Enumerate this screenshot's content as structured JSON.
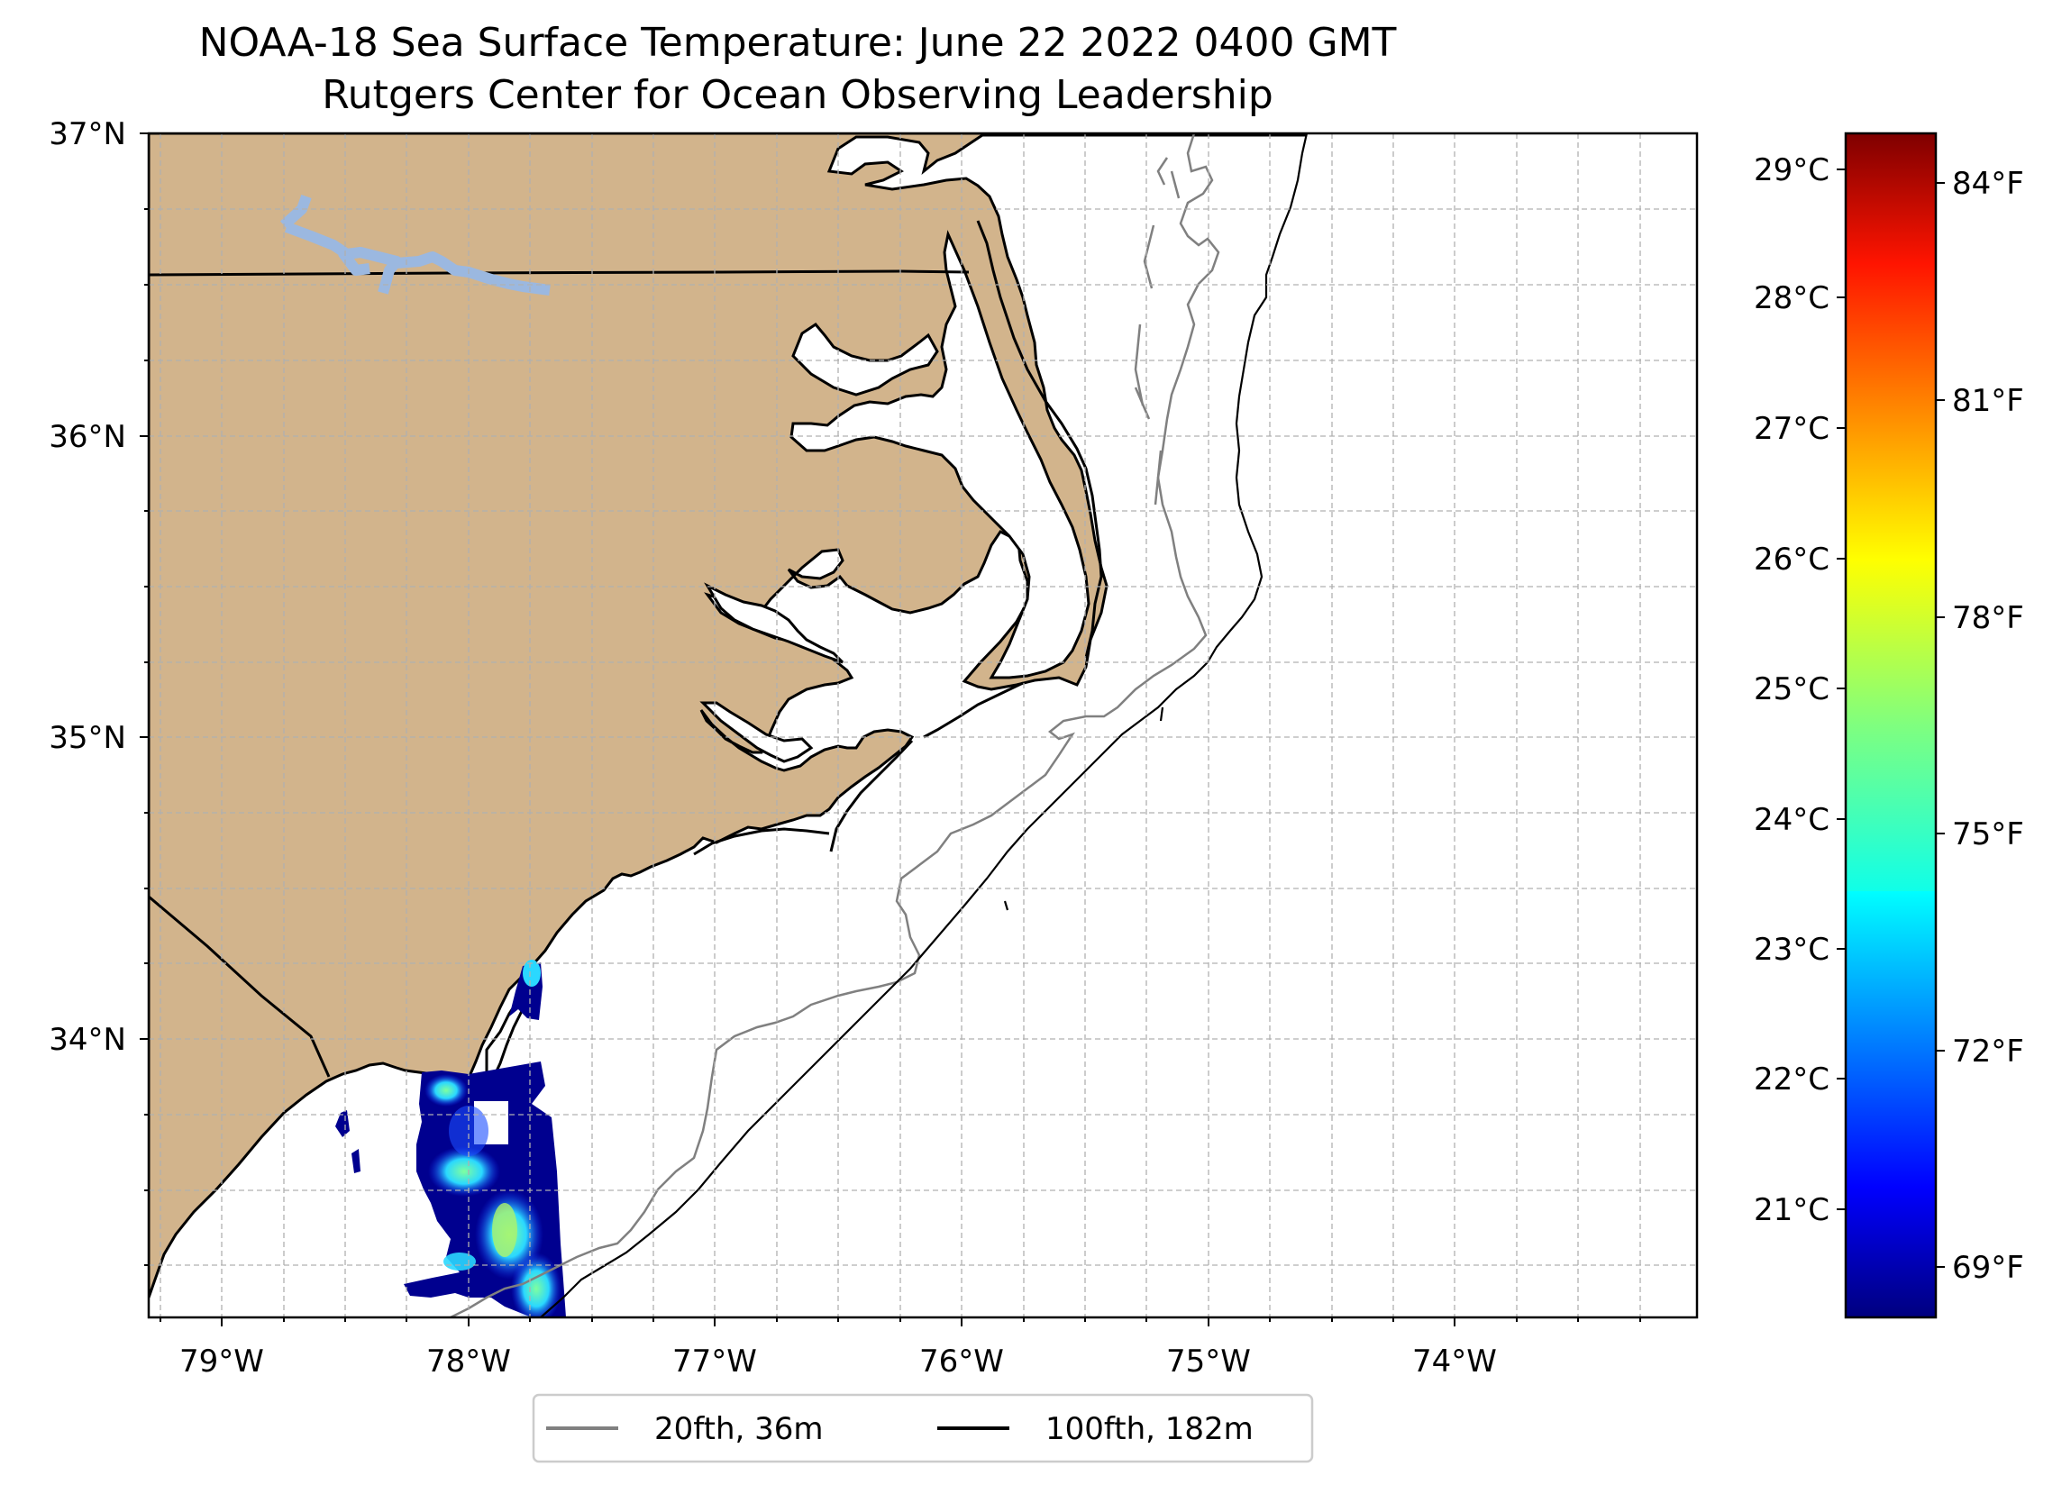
{
  "title": "NOAA-18 Sea Surface Temperature: June 22 2022 0400 GMT",
  "subtitle": "Rutgers Center for Ocean Observing Leadership",
  "map": {
    "lon_range": [
      -79.3,
      -73.03
    ],
    "lat_range": [
      33.1,
      37.0
    ],
    "lon_ticks": [
      "79°W",
      "78°W",
      "77°W",
      "76°W",
      "75°W",
      "74°W"
    ],
    "lat_ticks": [
      "37°N",
      "36°N",
      "35°N",
      "34°N"
    ],
    "land_color": "#d2b48c",
    "lake_color": "#9bb8e0",
    "grid": "dashed gray, every 0.25 degree"
  },
  "colorbar": {
    "colormap": "jet",
    "range_c": [
      20.2,
      29.3
    ],
    "celsius_ticks": [
      "29°C",
      "28°C",
      "27°C",
      "26°C",
      "25°C",
      "24°C",
      "23°C",
      "22°C",
      "21°C"
    ],
    "fahrenheit_ticks": [
      "84°F",
      "81°F",
      "78°F",
      "75°F",
      "72°F",
      "69°F"
    ]
  },
  "legend": {
    "items": [
      {
        "label": "20fth, 36m",
        "color": "#808080"
      },
      {
        "label": "100fth, 182m",
        "color": "#000000"
      }
    ]
  }
}
